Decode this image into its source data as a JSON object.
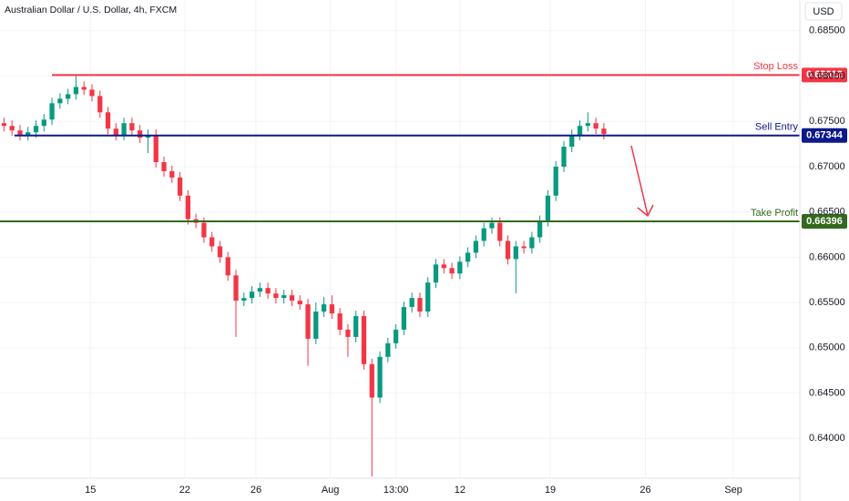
{
  "chart_data": {
    "type": "candlestick",
    "title": "Australian Dollar / U.S. Dollar, 4h, FXCM",
    "currency": "USD",
    "up_color": "#089981",
    "down_color": "#f23645",
    "xlim": [
      -0.5,
      99.5
    ],
    "xticks": [
      {
        "value": 10.8,
        "label": "15"
      },
      {
        "value": 22.6,
        "label": "22"
      },
      {
        "value": 31.5,
        "label": "26"
      },
      {
        "value": 40.8,
        "label": "Aug"
      },
      {
        "value": 49,
        "label": "13:00"
      },
      {
        "value": 57,
        "label": "12"
      },
      {
        "value": 68.3,
        "label": "19"
      },
      {
        "value": 80.2,
        "label": "26"
      },
      {
        "value": 91.2,
        "label": "Sep"
      }
    ],
    "ylim": [
      0.6356,
      0.6884
    ],
    "yticks": [
      {
        "value": 0.64,
        "label": "0.64000"
      },
      {
        "value": 0.645,
        "label": "0.64500"
      },
      {
        "value": 0.65,
        "label": "0.65000"
      },
      {
        "value": 0.655,
        "label": "0.65500"
      },
      {
        "value": 0.66,
        "label": "0.66000"
      },
      {
        "value": 0.665,
        "label": "0.66500"
      },
      {
        "value": 0.67,
        "label": "0.67000"
      },
      {
        "value": 0.675,
        "label": "0.67500"
      },
      {
        "value": 0.68,
        "label": "0.68000"
      },
      {
        "value": 0.685,
        "label": "0.68500"
      }
    ],
    "open": [
      0.6748,
      0.6745,
      0.674,
      0.6735,
      0.6738,
      0.6745,
      0.6752,
      0.677,
      0.6775,
      0.678,
      0.6788,
      0.6785,
      0.6778,
      0.676,
      0.6742,
      0.6735,
      0.6748,
      0.674,
      0.6732,
      0.6735,
      0.6705,
      0.6695,
      0.6688,
      0.6668,
      0.6642,
      0.6638,
      0.6622,
      0.6612,
      0.66,
      0.658,
      0.6552,
      0.6555,
      0.6562,
      0.6566,
      0.656,
      0.6555,
      0.6558,
      0.6552,
      0.6548,
      0.651,
      0.654,
      0.6548,
      0.6538,
      0.652,
      0.6512,
      0.6535,
      0.6482,
      0.6445,
      0.649,
      0.6505,
      0.652,
      0.6545,
      0.6555,
      0.654,
      0.6572,
      0.6592,
      0.6588,
      0.6582,
      0.6595,
      0.6605,
      0.6618,
      0.6632,
      0.6638,
      0.6618,
      0.6598,
      0.6612,
      0.661,
      0.6622,
      0.664,
      0.6668,
      0.67,
      0.6722,
      0.6735,
      0.6745,
      0.6748,
      0.6742
    ],
    "high": [
      0.6754,
      0.6751,
      0.6746,
      0.6744,
      0.6751,
      0.6758,
      0.6776,
      0.6781,
      0.6786,
      0.68,
      0.6794,
      0.6791,
      0.6784,
      0.6766,
      0.6748,
      0.6754,
      0.6754,
      0.6746,
      0.6741,
      0.6741,
      0.6711,
      0.6701,
      0.6694,
      0.6674,
      0.6648,
      0.6644,
      0.6628,
      0.6618,
      0.6606,
      0.6586,
      0.6561,
      0.6568,
      0.6572,
      0.6572,
      0.6566,
      0.6564,
      0.6564,
      0.6558,
      0.6554,
      0.655,
      0.6556,
      0.6558,
      0.6544,
      0.6526,
      0.6541,
      0.6541,
      0.6488,
      0.6496,
      0.6511,
      0.6526,
      0.6551,
      0.6561,
      0.6561,
      0.6578,
      0.6598,
      0.6598,
      0.6594,
      0.6601,
      0.6611,
      0.6624,
      0.6638,
      0.6644,
      0.6644,
      0.6624,
      0.6618,
      0.6618,
      0.6628,
      0.6646,
      0.6674,
      0.6706,
      0.6728,
      0.6741,
      0.6751,
      0.676,
      0.6754,
      0.6748
    ],
    "low": [
      0.6739,
      0.6734,
      0.6729,
      0.6729,
      0.6732,
      0.6739,
      0.6746,
      0.6764,
      0.6769,
      0.6774,
      0.6779,
      0.6772,
      0.6754,
      0.6736,
      0.6729,
      0.6729,
      0.6734,
      0.6726,
      0.6715,
      0.6699,
      0.6689,
      0.6682,
      0.6662,
      0.6636,
      0.6632,
      0.6616,
      0.6606,
      0.6594,
      0.6574,
      0.6512,
      0.6546,
      0.6549,
      0.6556,
      0.6554,
      0.6549,
      0.6549,
      0.6546,
      0.6542,
      0.648,
      0.6504,
      0.6534,
      0.6532,
      0.6514,
      0.649,
      0.6506,
      0.6476,
      0.6358,
      0.6439,
      0.6484,
      0.6499,
      0.6514,
      0.6539,
      0.6534,
      0.6534,
      0.6566,
      0.6582,
      0.6576,
      0.6576,
      0.6589,
      0.6599,
      0.6612,
      0.6626,
      0.6612,
      0.6592,
      0.656,
      0.6604,
      0.6604,
      0.6616,
      0.6634,
      0.6662,
      0.6694,
      0.6716,
      0.6729,
      0.6739,
      0.6736,
      0.673
    ],
    "close": [
      0.6745,
      0.674,
      0.6735,
      0.6738,
      0.6745,
      0.6752,
      0.677,
      0.6775,
      0.678,
      0.6788,
      0.6785,
      0.6778,
      0.676,
      0.6742,
      0.6735,
      0.6748,
      0.674,
      0.6732,
      0.6735,
      0.6705,
      0.6695,
      0.6688,
      0.6668,
      0.6642,
      0.6638,
      0.6622,
      0.6612,
      0.66,
      0.658,
      0.6552,
      0.6555,
      0.6562,
      0.6566,
      0.656,
      0.6555,
      0.6558,
      0.6552,
      0.6548,
      0.651,
      0.654,
      0.6548,
      0.6538,
      0.652,
      0.6512,
      0.6535,
      0.6482,
      0.6445,
      0.649,
      0.6505,
      0.652,
      0.6545,
      0.6555,
      0.654,
      0.6572,
      0.6592,
      0.6588,
      0.6582,
      0.6595,
      0.6605,
      0.6618,
      0.6632,
      0.6638,
      0.6618,
      0.6598,
      0.6612,
      0.661,
      0.6622,
      0.664,
      0.6668,
      0.67,
      0.6722,
      0.6735,
      0.6745,
      0.6748,
      0.6742,
      0.6736
    ],
    "levels": [
      {
        "name": "Stop Loss",
        "value": 0.68012,
        "color": "#f23645",
        "x_start": 6
      },
      {
        "name": "Sell Entry",
        "value": 0.67344,
        "color": "#0d1a8c",
        "x_start": 1.3
      },
      {
        "name": "Take Profit",
        "value": 0.66396,
        "color": "#33691e",
        "x_start": -0.5
      }
    ]
  }
}
